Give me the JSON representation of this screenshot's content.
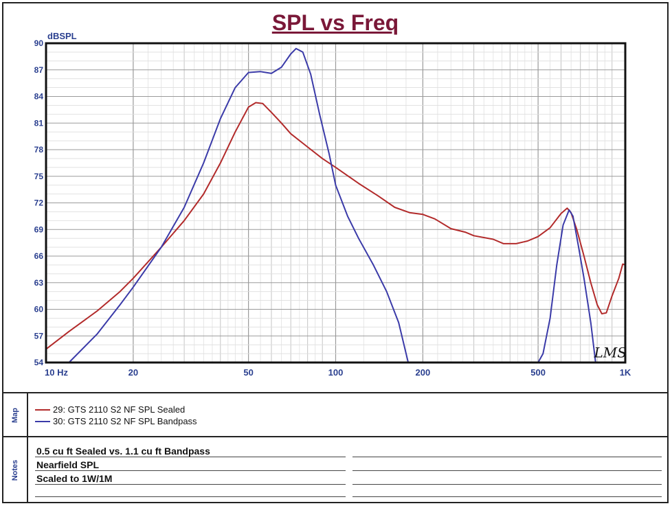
{
  "chart_data": {
    "type": "line",
    "title": "SPL vs Freq",
    "ylabel": "dBSPL",
    "xlabel": "",
    "x_scale": "log",
    "xlim": [
      10,
      1000
    ],
    "ylim": [
      54,
      90
    ],
    "yticks": [
      90,
      87,
      84,
      81,
      78,
      75,
      72,
      69,
      66,
      63,
      60,
      57,
      54
    ],
    "xtick_labels": [
      {
        "value": 10,
        "label": "10 Hz"
      },
      {
        "value": 20,
        "label": "20"
      },
      {
        "value": 50,
        "label": "50"
      },
      {
        "value": 100,
        "label": "100"
      },
      {
        "value": 200,
        "label": "200"
      },
      {
        "value": 500,
        "label": "500"
      },
      {
        "value": 1000,
        "label": "1K"
      }
    ],
    "grid": true,
    "annotation": "LMS",
    "series": [
      {
        "name": "29: GTS 2110 S2 NF SPL Sealed",
        "color": "#b22a2a",
        "points": [
          [
            10,
            55.5
          ],
          [
            12,
            57.5
          ],
          [
            15,
            59.8
          ],
          [
            18,
            62.0
          ],
          [
            20,
            63.5
          ],
          [
            25,
            67.0
          ],
          [
            30,
            70.0
          ],
          [
            35,
            73.0
          ],
          [
            40,
            76.5
          ],
          [
            45,
            80.0
          ],
          [
            50,
            82.8
          ],
          [
            53,
            83.3
          ],
          [
            56,
            83.2
          ],
          [
            60,
            82.2
          ],
          [
            65,
            81.0
          ],
          [
            70,
            79.8
          ],
          [
            80,
            78.3
          ],
          [
            90,
            77.0
          ],
          [
            100,
            76.0
          ],
          [
            120,
            74.2
          ],
          [
            140,
            72.8
          ],
          [
            160,
            71.5
          ],
          [
            180,
            70.9
          ],
          [
            200,
            70.7
          ],
          [
            220,
            70.2
          ],
          [
            250,
            69.1
          ],
          [
            280,
            68.7
          ],
          [
            300,
            68.3
          ],
          [
            350,
            67.9
          ],
          [
            380,
            67.4
          ],
          [
            420,
            67.4
          ],
          [
            460,
            67.7
          ],
          [
            500,
            68.2
          ],
          [
            550,
            69.2
          ],
          [
            600,
            70.8
          ],
          [
            630,
            71.4
          ],
          [
            650,
            70.9
          ],
          [
            680,
            69.0
          ],
          [
            720,
            66.0
          ],
          [
            760,
            63.0
          ],
          [
            800,
            60.5
          ],
          [
            830,
            59.5
          ],
          [
            860,
            59.6
          ],
          [
            900,
            61.5
          ],
          [
            950,
            63.5
          ],
          [
            980,
            65.1
          ],
          [
            1000,
            65.0
          ]
        ]
      },
      {
        "name": "30: GTS 2110 S2 NF SPL Bandpass",
        "color": "#3a3aa8",
        "points": [
          [
            12,
            54.0
          ],
          [
            15,
            57.2
          ],
          [
            18,
            60.5
          ],
          [
            20,
            62.5
          ],
          [
            25,
            67.0
          ],
          [
            30,
            71.5
          ],
          [
            35,
            76.5
          ],
          [
            40,
            81.5
          ],
          [
            45,
            85.0
          ],
          [
            50,
            86.7
          ],
          [
            55,
            86.8
          ],
          [
            60,
            86.6
          ],
          [
            65,
            87.3
          ],
          [
            70,
            88.8
          ],
          [
            73,
            89.4
          ],
          [
            77,
            89.0
          ],
          [
            82,
            86.5
          ],
          [
            88,
            82.0
          ],
          [
            95,
            77.5
          ],
          [
            100,
            74.0
          ],
          [
            110,
            70.5
          ],
          [
            120,
            68.0
          ],
          [
            135,
            65.0
          ],
          [
            150,
            62.0
          ],
          [
            165,
            58.5
          ],
          [
            178,
            54.0
          ],
          [
            200,
            54.0
          ],
          [
            300,
            54.0
          ],
          [
            400,
            54.0
          ],
          [
            500,
            54.0
          ],
          [
            520,
            55.0
          ],
          [
            550,
            59.0
          ],
          [
            580,
            65.0
          ],
          [
            610,
            69.5
          ],
          [
            640,
            71.2
          ],
          [
            660,
            70.5
          ],
          [
            690,
            67.0
          ],
          [
            720,
            63.5
          ],
          [
            760,
            58.5
          ],
          [
            790,
            54.0
          ],
          [
            1000,
            54.0
          ]
        ]
      }
    ]
  },
  "map": {
    "label": "Map",
    "items": [
      {
        "label": "29: GTS 2110 S2 NF SPL Sealed",
        "color": "#b22a2a"
      },
      {
        "label": "30: GTS 2110 S2 NF SPL Bandpass",
        "color": "#3a3aa8"
      }
    ]
  },
  "notes": {
    "label": "Notes",
    "lines": [
      "0.5 cu ft Sealed vs. 1.1 cu ft Bandpass",
      "Nearfield SPL",
      "Scaled to 1W/1M"
    ]
  }
}
